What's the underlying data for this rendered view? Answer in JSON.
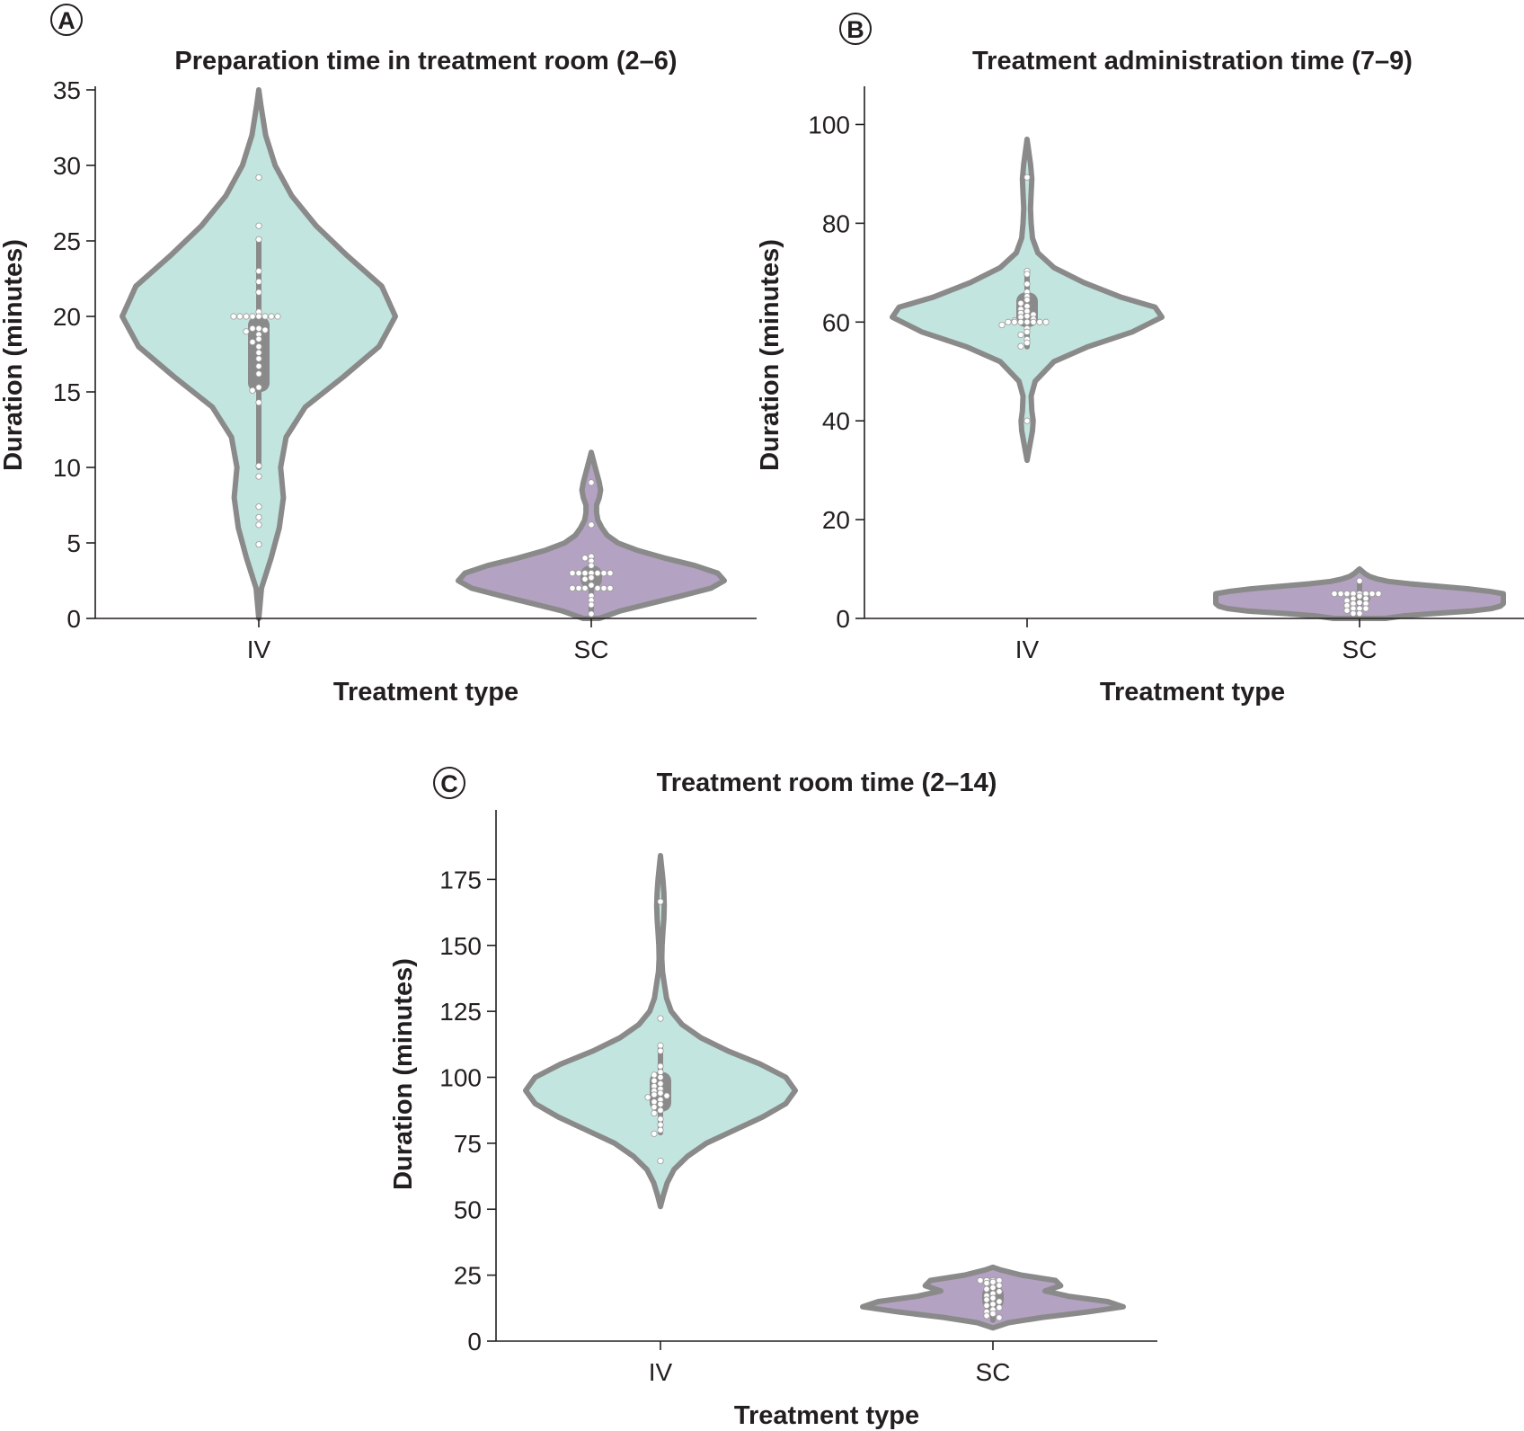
{
  "chart_data": [
    {
      "panel": "A",
      "type": "violin",
      "title": "Preparation time in treatment room (2–6)",
      "xlabel": "Treatment type",
      "ylabel": "Duration (minutes)",
      "categories": [
        "IV",
        "SC"
      ],
      "ylim": [
        0,
        35
      ],
      "yticks": [
        0,
        5,
        10,
        15,
        20,
        25,
        30,
        35
      ],
      "grid": false,
      "distributions": [
        {
          "category": "IV",
          "color": "#c3e5df",
          "min": 0,
          "max": 35,
          "shape": [
            [
              0,
              0
            ],
            [
              2,
              0.02
            ],
            [
              4,
              0.09
            ],
            [
              6,
              0.15
            ],
            [
              8,
              0.18
            ],
            [
              10,
              0.16
            ],
            [
              12,
              0.2
            ],
            [
              14,
              0.34
            ],
            [
              16,
              0.62
            ],
            [
              18,
              0.88
            ],
            [
              20,
              1.0
            ],
            [
              22,
              0.9
            ],
            [
              24,
              0.65
            ],
            [
              26,
              0.42
            ],
            [
              28,
              0.24
            ],
            [
              30,
              0.12
            ],
            [
              32,
              0.05
            ],
            [
              34,
              0.015
            ],
            [
              35,
              0
            ]
          ],
          "q1": 15,
          "median": 19,
          "q3": 20,
          "whisker_low": 10,
          "whisker_high": 25,
          "points": [
            29.2,
            26,
            25.1,
            23,
            22.3,
            21.6,
            20.3,
            20,
            20,
            20,
            20,
            20,
            20,
            20,
            20,
            19.2,
            19.2,
            19.1,
            19,
            18.8,
            18.5,
            18.3,
            18,
            17.6,
            17.2,
            16.7,
            16.2,
            15.3,
            15.1,
            14.3,
            10.1,
            9.4,
            7.4,
            6.7,
            6.2,
            4.9
          ]
        },
        {
          "category": "SC",
          "color": "#b3a2c1",
          "min": 0,
          "max": 11,
          "shape": [
            [
              0,
              0.06
            ],
            [
              0.5,
              0.22
            ],
            [
              1,
              0.45
            ],
            [
              1.5,
              0.68
            ],
            [
              2,
              0.9
            ],
            [
              2.5,
              1.0
            ],
            [
              3,
              0.95
            ],
            [
              3.5,
              0.78
            ],
            [
              4,
              0.55
            ],
            [
              4.5,
              0.35
            ],
            [
              5,
              0.2
            ],
            [
              5.5,
              0.12
            ],
            [
              6,
              0.08
            ],
            [
              6.5,
              0.05
            ],
            [
              7,
              0.04
            ],
            [
              7.5,
              0.04
            ],
            [
              8,
              0.06
            ],
            [
              8.5,
              0.07
            ],
            [
              9,
              0.06
            ],
            [
              10,
              0.03
            ],
            [
              11,
              0
            ]
          ],
          "q1": 2,
          "median": 3,
          "q3": 3.5,
          "whisker_low": 0.5,
          "whisker_high": 4,
          "points": [
            9,
            6.2,
            4.1,
            4,
            3.8,
            3.5,
            3,
            3,
            3,
            3,
            3,
            3,
            3,
            2.7,
            2.6,
            2.2,
            2,
            2,
            2,
            2,
            2,
            2,
            1.5,
            1.2,
            0.9,
            0.3
          ]
        }
      ]
    },
    {
      "panel": "B",
      "type": "violin",
      "title": "Treatment administration time (7–9)",
      "xlabel": "Treatment type",
      "ylabel": "Duration (minutes)",
      "categories": [
        "IV",
        "SC"
      ],
      "ylim": [
        0,
        107
      ],
      "yticks": [
        0,
        20,
        40,
        60,
        80,
        100
      ],
      "grid": false,
      "distributions": [
        {
          "category": "IV",
          "color": "#c3e5df",
          "min": 32,
          "max": 97,
          "shape": [
            [
              32,
              0
            ],
            [
              35,
              0.02
            ],
            [
              38,
              0.04
            ],
            [
              40,
              0.045
            ],
            [
              42,
              0.035
            ],
            [
              45,
              0.03
            ],
            [
              48,
              0.06
            ],
            [
              52,
              0.2
            ],
            [
              55,
              0.45
            ],
            [
              58,
              0.78
            ],
            [
              61,
              1.0
            ],
            [
              63,
              0.95
            ],
            [
              65,
              0.7
            ],
            [
              68,
              0.42
            ],
            [
              71,
              0.2
            ],
            [
              74,
              0.08
            ],
            [
              77,
              0.04
            ],
            [
              80,
              0.03
            ],
            [
              83,
              0.025
            ],
            [
              86,
              0.03
            ],
            [
              89,
              0.035
            ],
            [
              92,
              0.025
            ],
            [
              95,
              0.01
            ],
            [
              97,
              0
            ]
          ],
          "q1": 59,
          "median": 62,
          "q3": 66,
          "whisker_low": 55,
          "whisker_high": 70,
          "points": [
            89.3,
            70.3,
            69.7,
            67.7,
            66.1,
            65.2,
            64.5,
            63.8,
            63.2,
            62.6,
            62.2,
            61.8,
            61.5,
            61.2,
            61,
            60.6,
            60.3,
            60,
            60,
            60,
            60,
            60,
            60,
            60,
            59.4,
            58.7,
            58,
            57.4,
            56.5,
            55.8,
            55.1,
            40
          ]
        },
        {
          "category": "SC",
          "color": "#b3a2c1",
          "min": 0,
          "max": 10,
          "shape": [
            [
              0,
              0.18
            ],
            [
              0.5,
              0.3
            ],
            [
              1,
              0.52
            ],
            [
              1.5,
              0.78
            ],
            [
              2,
              0.92
            ],
            [
              2.5,
              0.98
            ],
            [
              3,
              1.0
            ],
            [
              3.5,
              1.0
            ],
            [
              4,
              1.0
            ],
            [
              4.5,
              1.0
            ],
            [
              5,
              1.0
            ],
            [
              5.5,
              0.9
            ],
            [
              6,
              0.75
            ],
            [
              6.5,
              0.55
            ],
            [
              7,
              0.35
            ],
            [
              7.5,
              0.2
            ],
            [
              8,
              0.12
            ],
            [
              8.5,
              0.07
            ],
            [
              9,
              0.04
            ],
            [
              9.5,
              0.02
            ],
            [
              10,
              0
            ]
          ],
          "q1": 3,
          "median": 4,
          "q3": 5,
          "whisker_low": 1,
          "whisker_high": 7.5,
          "points": [
            7.6,
            5,
            5,
            5,
            5,
            5,
            5,
            5,
            5,
            4.5,
            4,
            4,
            3.6,
            3.2,
            3,
            3,
            2.6,
            2,
            2,
            2,
            1.6,
            1,
            1
          ]
        }
      ]
    },
    {
      "panel": "C",
      "type": "violin",
      "title": "Treatment room time (2–14)",
      "xlabel": "Treatment type",
      "ylabel": "Duration (minutes)",
      "categories": [
        "IV",
        "SC"
      ],
      "ylim": [
        0,
        200
      ],
      "yticks": [
        0,
        25,
        50,
        75,
        100,
        125,
        150,
        175
      ],
      "grid": false,
      "distributions": [
        {
          "category": "IV",
          "color": "#c3e5df",
          "min": 51,
          "max": 184,
          "shape": [
            [
              51,
              0
            ],
            [
              55,
              0.02
            ],
            [
              60,
              0.05
            ],
            [
              65,
              0.1
            ],
            [
              70,
              0.2
            ],
            [
              75,
              0.34
            ],
            [
              80,
              0.55
            ],
            [
              85,
              0.76
            ],
            [
              90,
              0.93
            ],
            [
              95,
              1.0
            ],
            [
              100,
              0.93
            ],
            [
              105,
              0.74
            ],
            [
              110,
              0.5
            ],
            [
              115,
              0.3
            ],
            [
              120,
              0.16
            ],
            [
              125,
              0.08
            ],
            [
              130,
              0.045
            ],
            [
              135,
              0.03
            ],
            [
              140,
              0.015
            ],
            [
              145,
              0.01
            ],
            [
              150,
              0.012
            ],
            [
              155,
              0.018
            ],
            [
              160,
              0.025
            ],
            [
              165,
              0.028
            ],
            [
              170,
              0.025
            ],
            [
              175,
              0.018
            ],
            [
              180,
              0.008
            ],
            [
              184,
              0
            ]
          ],
          "q1": 87,
          "median": 93,
          "q3": 102,
          "whisker_low": 79,
          "whisker_high": 112,
          "points": [
            166.6,
            122.3,
            112,
            110,
            104.2,
            102,
            100.9,
            100,
            98.7,
            97.6,
            96.6,
            95.6,
            94.8,
            94,
            93.4,
            93,
            92.4,
            91.5,
            90.7,
            89.8,
            88.7,
            87.5,
            86.4,
            84.2,
            82,
            80,
            78.6,
            68.3
          ]
        },
        {
          "category": "SC",
          "color": "#b3a2c1",
          "min": 5,
          "max": 28,
          "shape": [
            [
              5,
              0
            ],
            [
              7,
              0.12
            ],
            [
              9,
              0.38
            ],
            [
              11,
              0.72
            ],
            [
              13,
              1.0
            ],
            [
              15,
              0.88
            ],
            [
              17,
              0.58
            ],
            [
              19,
              0.4
            ],
            [
              21,
              0.52
            ],
            [
              23,
              0.48
            ],
            [
              25,
              0.22
            ],
            [
              27,
              0.06
            ],
            [
              28,
              0
            ]
          ],
          "q1": 12,
          "median": 16,
          "q3": 21,
          "whisker_low": 8,
          "whisker_high": 23,
          "points": [
            23,
            23,
            23,
            23,
            22.4,
            22,
            21.1,
            20.3,
            19.7,
            18.8,
            18,
            17.2,
            16.3,
            15.7,
            15,
            14,
            13.5,
            12.7,
            11.9,
            11.1,
            10.4,
            9.6,
            8.9
          ]
        }
      ]
    }
  ],
  "panel_labels": [
    "A",
    "B",
    "C"
  ]
}
